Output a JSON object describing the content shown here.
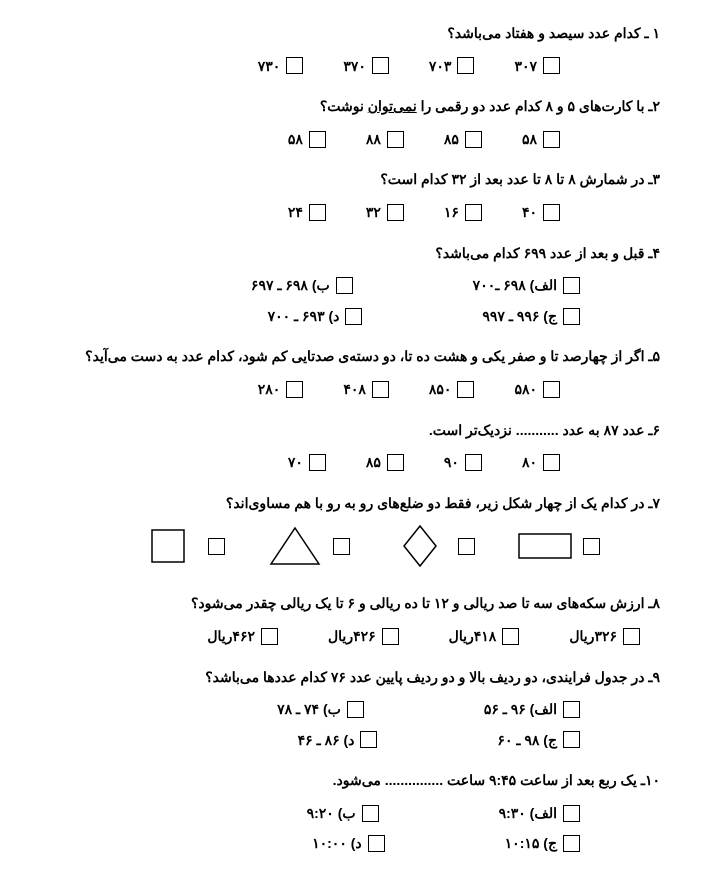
{
  "questions": [
    {
      "text": "۱ ـ کدام عدد سیصد و هفتاد می‌باشد؟",
      "layout": "simple",
      "options": [
        "۳۰۷",
        "۷۰۳",
        "۳۷۰",
        "۷۳۰"
      ]
    },
    {
      "text": "۲ـ با کارت‌های ۵ و ۸ کدام عدد دو رقمی را نمی‌توان نوشت؟",
      "layout": "simple",
      "underline": "نمی‌توان",
      "options": [
        "۵۸",
        "۸۵",
        "۸۸",
        "۵۸"
      ]
    },
    {
      "text": "۳ـ در شمارش ۸ تا ۸ تا عدد بعد از ۳۲ کدام است؟",
      "layout": "simple",
      "options": [
        "۴۰",
        "۱۶",
        "۳۲",
        "۲۴"
      ]
    },
    {
      "text": "۴ـ قبل و بعد از عدد ۶۹۹ کدام می‌باشد؟",
      "layout": "two-col",
      "options": [
        [
          "الف) ۶۹۸ ـ۷۰۰",
          "ب) ۶۹۸ ـ ۶۹۷"
        ],
        [
          "ج) ۹۹۶ ـ ۹۹۷",
          "د) ۶۹۳ ـ ۷۰۰"
        ]
      ]
    },
    {
      "text": "۵ـ اگر از چهارصد تا و صفر یکی و هشت ده تا، دو دسته‌ی صدتایی کم شود، کدام عدد به دست می‌آید؟",
      "layout": "simple",
      "options": [
        "۵۸۰",
        "۸۵۰",
        "۴۰۸",
        "۲۸۰"
      ]
    },
    {
      "text": "۶ـ عدد ۸۷ به عدد ........... نزدیک‌تر است.",
      "layout": "simple",
      "options": [
        "۸۰",
        "۹۰",
        "۸۵",
        "۷۰"
      ]
    },
    {
      "text": "۷ـ در کدام یک از چهار شکل زیر، فقط دو ضلع‌های رو به رو با هم مساوی‌اند؟",
      "layout": "shapes"
    },
    {
      "text": "۸ـ ارزش سکه‌های سه تا صد ریالی و ۱۲ تا ده ریالی و ۶ تا یک ریالی چقدر می‌شود؟",
      "layout": "wide",
      "options": [
        "۳۲۶ریال",
        "۴۱۸ریال",
        "۴۲۶ریال",
        "۴۶۲ریال"
      ]
    },
    {
      "text": "۹ـ در جدول فرایندی، دو ردیف بالا و دو ردیف پایین عدد ۷۶ کدام عددها می‌باشد؟",
      "layout": "two-col",
      "options": [
        [
          "الف) ۹۶ ـ ۵۶",
          "ب) ۷۴ ـ ۷۸"
        ],
        [
          "ج) ۹۸ ـ ۶۰",
          "د) ۸۶ ـ ۴۶"
        ]
      ]
    },
    {
      "text": "۱۰ـ یک ربع بعد از ساعت ۹:۴۵ ساعت ............... می‌شود.",
      "layout": "two-col",
      "options": [
        [
          "الف) ۹:۳۰",
          "ب) ۹:۲۰"
        ],
        [
          "ج) ۱۰:۱۵",
          "د) ۱۰:۰۰"
        ]
      ]
    }
  ],
  "shapes": {
    "stroke": "#000",
    "stroke_width": 1.5
  }
}
